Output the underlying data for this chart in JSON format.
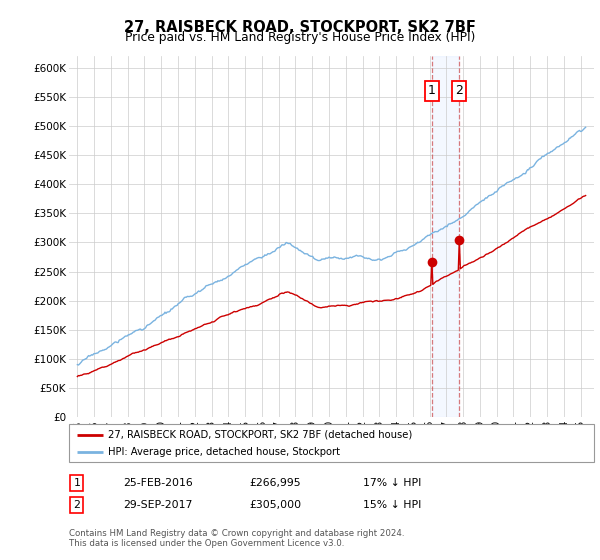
{
  "title": "27, RAISBECK ROAD, STOCKPORT, SK2 7BF",
  "subtitle": "Price paid vs. HM Land Registry's House Price Index (HPI)",
  "ylabel_ticks": [
    "£0",
    "£50K",
    "£100K",
    "£150K",
    "£200K",
    "£250K",
    "£300K",
    "£350K",
    "£400K",
    "£450K",
    "£500K",
    "£550K",
    "£600K"
  ],
  "ytick_values": [
    0,
    50000,
    100000,
    150000,
    200000,
    250000,
    300000,
    350000,
    400000,
    450000,
    500000,
    550000,
    600000
  ],
  "ylim": [
    0,
    620000
  ],
  "hpi_color": "#7ab3e0",
  "price_color": "#cc0000",
  "grid_color": "#cccccc",
  "transaction1_date": 2016.14,
  "transaction1_price": 266995,
  "transaction2_date": 2017.75,
  "transaction2_price": 305000,
  "legend_label1": "27, RAISBECK ROAD, STOCKPORT, SK2 7BF (detached house)",
  "legend_label2": "HPI: Average price, detached house, Stockport",
  "table_row1": [
    "1",
    "25-FEB-2016",
    "£266,995",
    "17% ↓ HPI"
  ],
  "table_row2": [
    "2",
    "29-SEP-2017",
    "£305,000",
    "15% ↓ HPI"
  ],
  "footnote": "Contains HM Land Registry data © Crown copyright and database right 2024.\nThis data is licensed under the Open Government Licence v3.0."
}
